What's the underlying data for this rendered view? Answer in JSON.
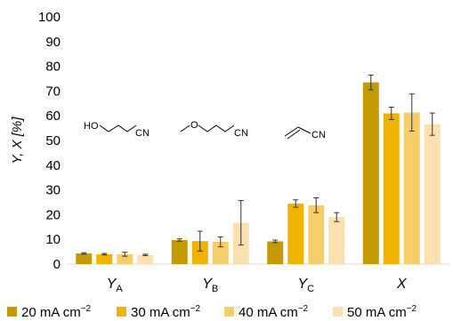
{
  "chart_data": {
    "type": "bar",
    "ylabel": "Y, X [%]",
    "ylim": [
      0,
      100
    ],
    "yticks": [
      "0",
      "10",
      "20",
      "30",
      "40",
      "50",
      "60",
      "70",
      "80",
      "90",
      "100"
    ],
    "grid": false,
    "legend_position": "bottom",
    "categories": [
      {
        "main": "Y",
        "sub": "A"
      },
      {
        "main": "Y",
        "sub": "B"
      },
      {
        "main": "Y",
        "sub": "C"
      },
      {
        "main": "X",
        "sub": ""
      }
    ],
    "series": [
      {
        "name": "20 mA cm",
        "sup": "−2",
        "color": "#C49A00",
        "values": [
          4.3,
          9.7,
          9.2,
          73.5
        ],
        "errors": [
          0.3,
          0.5,
          0.5,
          3.0
        ]
      },
      {
        "name": "30 mA cm",
        "sup": "−2",
        "color": "#F0B400",
        "values": [
          4.0,
          9.3,
          24.5,
          61.0
        ],
        "errors": [
          0.3,
          4.0,
          1.5,
          2.5
        ]
      },
      {
        "name": "40 mA cm",
        "sup": "−2",
        "color": "#F7CD6A",
        "values": [
          4.0,
          9.0,
          23.8,
          61.3
        ],
        "errors": [
          0.8,
          2.0,
          3.0,
          7.5
        ]
      },
      {
        "name": "50 mA cm",
        "sup": "−2",
        "color": "#FCE0B0",
        "values": [
          3.7,
          16.7,
          19.0,
          56.6
        ],
        "errors": [
          0.3,
          9.0,
          1.8,
          4.5
        ]
      }
    ],
    "annotations": {
      "molA": {
        "left": "HO",
        "right": "CN"
      },
      "molB": {
        "left": "O",
        "right": "CN"
      },
      "molC": {
        "right": "CN"
      }
    }
  }
}
